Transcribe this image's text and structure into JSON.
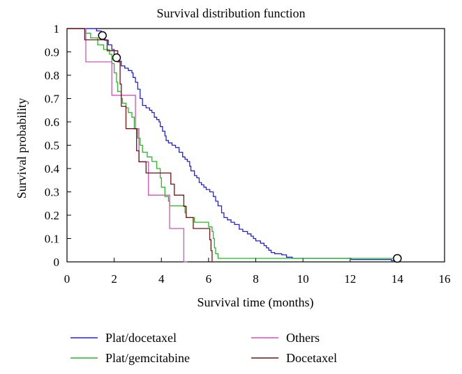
{
  "chart_data": {
    "type": "line",
    "subtype": "step (Kaplan-Meier)",
    "title": "Survival distribution function",
    "xlabel": "Survival time (months)",
    "ylabel": "Survival probability",
    "xlim": [
      0,
      16
    ],
    "ylim": [
      0,
      1
    ],
    "xticks": [
      0,
      2,
      4,
      6,
      8,
      10,
      12,
      14,
      16
    ],
    "yticks": [
      0,
      0.1,
      0.2,
      0.3,
      0.4,
      0.5,
      0.6,
      0.7,
      0.8,
      0.9,
      1
    ],
    "grid": false,
    "legend_position": "bottom",
    "series": [
      {
        "name": "Plat/docetaxel",
        "color": "#2222dd",
        "points": [
          [
            0,
            1
          ],
          [
            1.25,
            0.99
          ],
          [
            1.45,
            0.97
          ],
          [
            1.6,
            0.95
          ],
          [
            1.75,
            0.93
          ],
          [
            1.9,
            0.91
          ],
          [
            2.0,
            0.88
          ],
          [
            2.1,
            0.86
          ],
          [
            2.3,
            0.84
          ],
          [
            2.45,
            0.83
          ],
          [
            2.6,
            0.82
          ],
          [
            2.75,
            0.81
          ],
          [
            2.8,
            0.79
          ],
          [
            2.9,
            0.77
          ],
          [
            3.0,
            0.74
          ],
          [
            3.1,
            0.7
          ],
          [
            3.2,
            0.67
          ],
          [
            3.35,
            0.66
          ],
          [
            3.5,
            0.65
          ],
          [
            3.6,
            0.64
          ],
          [
            3.7,
            0.62
          ],
          [
            3.8,
            0.61
          ],
          [
            3.9,
            0.6
          ],
          [
            3.95,
            0.58
          ],
          [
            4.05,
            0.56
          ],
          [
            4.15,
            0.54
          ],
          [
            4.2,
            0.52
          ],
          [
            4.3,
            0.51
          ],
          [
            4.45,
            0.5
          ],
          [
            4.6,
            0.49
          ],
          [
            4.75,
            0.47
          ],
          [
            4.9,
            0.45
          ],
          [
            5.0,
            0.44
          ],
          [
            5.1,
            0.43
          ],
          [
            5.2,
            0.41
          ],
          [
            5.25,
            0.39
          ],
          [
            5.4,
            0.37
          ],
          [
            5.5,
            0.36
          ],
          [
            5.6,
            0.34
          ],
          [
            5.7,
            0.33
          ],
          [
            5.8,
            0.32
          ],
          [
            5.9,
            0.31
          ],
          [
            6.05,
            0.3
          ],
          [
            6.2,
            0.28
          ],
          [
            6.3,
            0.26
          ],
          [
            6.4,
            0.24
          ],
          [
            6.55,
            0.21
          ],
          [
            6.65,
            0.19
          ],
          [
            6.8,
            0.18
          ],
          [
            6.95,
            0.17
          ],
          [
            7.1,
            0.16
          ],
          [
            7.3,
            0.14
          ],
          [
            7.45,
            0.13
          ],
          [
            7.65,
            0.12
          ],
          [
            7.8,
            0.11
          ],
          [
            7.9,
            0.1
          ],
          [
            8.0,
            0.09
          ],
          [
            8.2,
            0.08
          ],
          [
            8.35,
            0.07
          ],
          [
            8.45,
            0.06
          ],
          [
            8.55,
            0.05
          ],
          [
            8.65,
            0.04
          ],
          [
            8.8,
            0.035
          ],
          [
            9.1,
            0.03
          ],
          [
            9.3,
            0.02
          ],
          [
            9.55,
            0.015
          ],
          [
            12.0,
            0.015
          ],
          [
            12.05,
            0.01
          ],
          [
            13.7,
            0.01
          ],
          [
            13.75,
            0.005
          ],
          [
            14.0,
            0.005
          ]
        ]
      },
      {
        "name": "Plat/gemcitabine",
        "color": "#22bb22",
        "points": [
          [
            0,
            1
          ],
          [
            0.8,
            0.98
          ],
          [
            1.0,
            0.96
          ],
          [
            1.3,
            0.93
          ],
          [
            1.55,
            0.91
          ],
          [
            1.8,
            0.89
          ],
          [
            1.9,
            0.85
          ],
          [
            2.0,
            0.81
          ],
          [
            2.1,
            0.77
          ],
          [
            2.15,
            0.73
          ],
          [
            2.3,
            0.7
          ],
          [
            2.35,
            0.68
          ],
          [
            2.5,
            0.66
          ],
          [
            2.6,
            0.64
          ],
          [
            2.75,
            0.62
          ],
          [
            2.85,
            0.57
          ],
          [
            3.0,
            0.53
          ],
          [
            3.1,
            0.5
          ],
          [
            3.2,
            0.47
          ],
          [
            3.4,
            0.45
          ],
          [
            3.6,
            0.43
          ],
          [
            3.8,
            0.4
          ],
          [
            3.95,
            0.36
          ],
          [
            4.0,
            0.32
          ],
          [
            4.15,
            0.28
          ],
          [
            4.3,
            0.26
          ],
          [
            4.35,
            0.24
          ],
          [
            4.9,
            0.24
          ],
          [
            5.0,
            0.21
          ],
          [
            5.05,
            0.19
          ],
          [
            5.4,
            0.17
          ],
          [
            6.0,
            0.15
          ],
          [
            6.15,
            0.13
          ],
          [
            6.2,
            0.1
          ],
          [
            6.25,
            0.06
          ],
          [
            6.3,
            0.035
          ],
          [
            6.4,
            0.015
          ],
          [
            14.0,
            0.015
          ]
        ]
      },
      {
        "name": "Others",
        "color": "#d452b4",
        "points": [
          [
            0,
            1
          ],
          [
            0.8,
            0.857
          ],
          [
            1.9,
            0.714
          ],
          [
            2.9,
            0.571
          ],
          [
            3.05,
            0.429
          ],
          [
            3.45,
            0.286
          ],
          [
            4.35,
            0.143
          ],
          [
            4.95,
            0
          ],
          [
            5.1,
            0
          ]
        ]
      },
      {
        "name": "Docetaxel",
        "color": "#7a1010",
        "points": [
          [
            0,
            1
          ],
          [
            0.75,
            0.952
          ],
          [
            1.55,
            0.952
          ],
          [
            1.7,
            0.905
          ],
          [
            2.15,
            0.857
          ],
          [
            2.25,
            0.762
          ],
          [
            2.3,
            0.667
          ],
          [
            2.5,
            0.571
          ],
          [
            2.95,
            0.476
          ],
          [
            3.05,
            0.429
          ],
          [
            3.35,
            0.381
          ],
          [
            4.4,
            0.333
          ],
          [
            4.55,
            0.286
          ],
          [
            4.95,
            0.238
          ],
          [
            5.05,
            0.19
          ],
          [
            5.35,
            0.143
          ],
          [
            6.05,
            0.095
          ],
          [
            6.1,
            0.048
          ],
          [
            6.15,
            0
          ],
          [
            6.25,
            0
          ]
        ]
      }
    ],
    "censored_markers": [
      {
        "x": 1.5,
        "y": 0.97
      },
      {
        "x": 2.1,
        "y": 0.875
      },
      {
        "x": 14.0,
        "y": 0.015
      }
    ],
    "legend": [
      {
        "label": "Plat/docetaxel",
        "color": "#2222dd"
      },
      {
        "label": "Others",
        "color": "#d452b4"
      },
      {
        "label": "Plat/gemcitabine",
        "color": "#22bb22"
      },
      {
        "label": "Docetaxel",
        "color": "#7a1010"
      }
    ]
  }
}
